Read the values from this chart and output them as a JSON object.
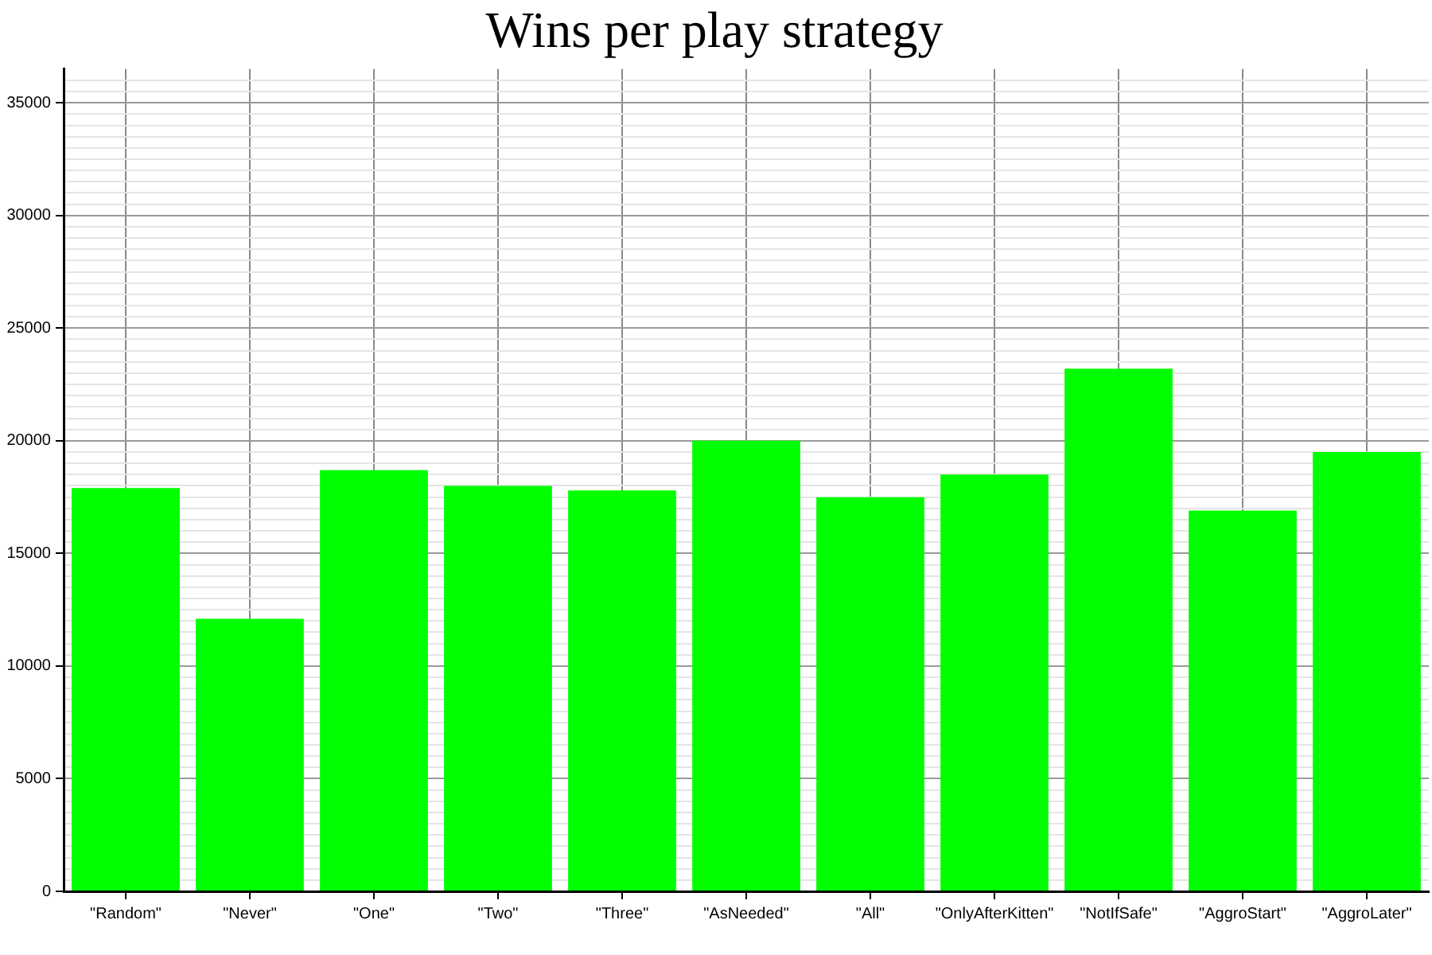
{
  "chart_data": {
    "type": "bar",
    "title": "Wins per play strategy",
    "categories": [
      "\"Random\"",
      "\"Never\"",
      "\"One\"",
      "\"Two\"",
      "\"Three\"",
      "\"AsNeeded\"",
      "\"All\"",
      "\"OnlyAfterKitten\"",
      "\"NotIfSafe\"",
      "\"AggroStart\"",
      "\"AggroLater\""
    ],
    "values": [
      17900,
      12100,
      18700,
      18000,
      17800,
      20000,
      17500,
      18500,
      23200,
      16900,
      19500
    ],
    "color": "#00ff00",
    "ylim": [
      0,
      36500
    ],
    "yticks": [
      0,
      {
        "value": 500,
        "label": null
      },
      {
        "value": 1000,
        "label": null
      },
      {
        "value": 1500,
        "label": null
      },
      {
        "value": 2000,
        "label": null
      },
      {
        "value": 2500,
        "label": null
      },
      {
        "value": 3000,
        "label": null
      },
      {
        "value": 3500,
        "label": null
      },
      {
        "value": 4000,
        "label": null
      },
      {
        "value": 4500,
        "label": null
      },
      5000,
      {
        "value": 5500,
        "label": null
      },
      {
        "value": 6000,
        "label": null
      },
      {
        "value": 6500,
        "label": null
      },
      {
        "value": 7000,
        "label": null
      },
      {
        "value": 7500,
        "label": null
      },
      {
        "value": 8000,
        "label": null
      },
      {
        "value": 8500,
        "label": null
      },
      {
        "value": 9000,
        "label": null
      },
      {
        "value": 9500,
        "label": null
      },
      10000,
      {
        "value": 10500,
        "label": null
      },
      {
        "value": 11000,
        "label": null
      },
      {
        "value": 11500,
        "label": null
      },
      {
        "value": 12000,
        "label": null
      },
      {
        "value": 12500,
        "label": null
      },
      {
        "value": 13000,
        "label": null
      },
      {
        "value": 13500,
        "label": null
      },
      {
        "value": 14000,
        "label": null
      },
      {
        "value": 14500,
        "label": null
      },
      15000,
      {
        "value": 15500,
        "label": null
      },
      {
        "value": 16000,
        "label": null
      },
      {
        "value": 16500,
        "label": null
      },
      {
        "value": 17000,
        "label": null
      },
      {
        "value": 17500,
        "label": null
      },
      {
        "value": 18000,
        "label": null
      },
      {
        "value": 18500,
        "label": null
      },
      {
        "value": 19000,
        "label": null
      },
      {
        "value": 19500,
        "label": null
      },
      20000,
      {
        "value": 20500,
        "label": null
      },
      {
        "value": 21000,
        "label": null
      },
      {
        "value": 21500,
        "label": null
      },
      {
        "value": 22000,
        "label": null
      },
      {
        "value": 22500,
        "label": null
      },
      {
        "value": 23000,
        "label": null
      },
      {
        "value": 23500,
        "label": null
      },
      {
        "value": 24000,
        "label": null
      },
      {
        "value": 24500,
        "label": null
      },
      25000,
      {
        "value": 25500,
        "label": null
      },
      {
        "value": 26000,
        "label": null
      },
      {
        "value": 26500,
        "label": null
      },
      {
        "value": 27000,
        "label": null
      },
      {
        "value": 27500,
        "label": null
      },
      {
        "value": 28000,
        "label": null
      },
      {
        "value": 28500,
        "label": null
      },
      {
        "value": 29000,
        "label": null
      },
      {
        "value": 29500,
        "label": null
      },
      30000,
      {
        "value": 30500,
        "label": null
      },
      {
        "value": 31000,
        "label": null
      },
      {
        "value": 31500,
        "label": null
      },
      {
        "value": 32000,
        "label": null
      },
      {
        "value": 32500,
        "label": null
      },
      {
        "value": 33000,
        "label": null
      },
      {
        "value": 33500,
        "label": null
      },
      {
        "value": 34000,
        "label": null
      },
      {
        "value": 34500,
        "label": null
      },
      35000,
      {
        "value": 35500,
        "label": null
      },
      {
        "value": 36000,
        "label": null
      }
    ],
    "grid": true
  }
}
